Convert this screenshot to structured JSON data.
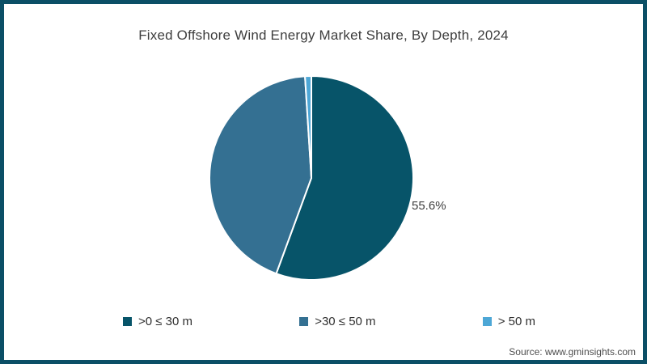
{
  "title": "Fixed Offshore Wind Energy Market Share, By Depth, 2024",
  "source": "Source: www.gminsights.com",
  "frame": {
    "border_color": "#0b4f66",
    "background": "#ffffff"
  },
  "chart_data": {
    "type": "pie",
    "title": "Fixed Offshore Wind Energy Market Share, By Depth, 2024",
    "categories": [
      ">0 ≤ 30 m",
      ">30 ≤ 50 m",
      "> 50 m"
    ],
    "values": [
      55.6,
      43.4,
      1.0
    ],
    "unit": "%",
    "colors": [
      "#075469",
      "#347092",
      "#4da7d6"
    ],
    "slice_labels": [
      "55.6%",
      "",
      ""
    ],
    "percent_label": "55.6%",
    "legend_position": "bottom",
    "start_angle_deg": 0,
    "direction": "clockwise",
    "separator_color": "#ffffff",
    "text_color": "#3f3f3f"
  }
}
